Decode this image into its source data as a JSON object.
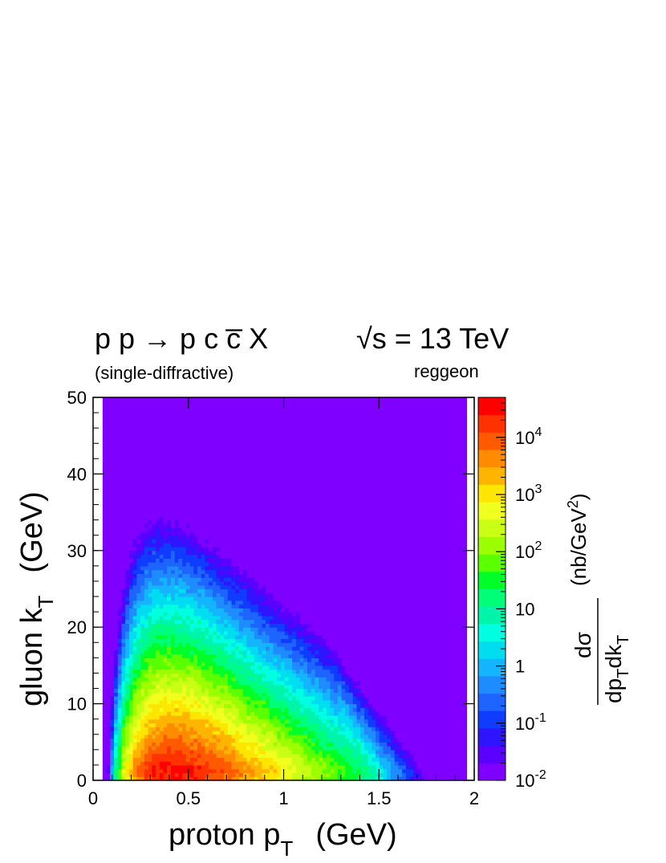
{
  "chart_data": {
    "type": "heatmap",
    "title": {
      "process": "p p → p c c̅ X",
      "process_sub": "(single-diffractive)",
      "energy": "√s = 13 TeV",
      "energy_sub": "reggeon"
    },
    "xlabel": "proton p",
    "xlabel_sub": "T",
    "xlabel_unit": "(GeV)",
    "ylabel": "gluon k",
    "ylabel_sub": "T",
    "ylabel_unit": "(GeV)",
    "xlim": [
      0,
      2
    ],
    "ylim": [
      0,
      50
    ],
    "x_ticks": [
      "0",
      "0.5",
      "1",
      "1.5",
      "2"
    ],
    "x_tick_values": [
      0,
      0.5,
      1,
      1.5,
      2
    ],
    "y_ticks": [
      "0",
      "10",
      "20",
      "30",
      "40",
      "50"
    ],
    "y_tick_values": [
      0,
      10,
      20,
      30,
      40,
      50
    ],
    "z_scale": "log",
    "zlim": [
      0.01,
      50000
    ],
    "colorbar": {
      "label_unit": "(nb/GeV",
      "label_unit_sup": "2",
      "label_unit_end": ")",
      "label_num": "dσ",
      "label_den": "dp",
      "label_den_sub": "T",
      "label_den_mid": "dk",
      "label_den_sub2": "T",
      "tick_values": [
        0.01,
        0.1,
        1,
        10,
        100,
        1000,
        10000
      ],
      "ticks": [
        {
          "base": "10",
          "exp": "-2"
        },
        {
          "base": "10",
          "exp": "-1"
        },
        {
          "base": "1",
          "exp": ""
        },
        {
          "base": "10",
          "exp": ""
        },
        {
          "base": "10",
          "exp": "2"
        },
        {
          "base": "10",
          "exp": "3"
        },
        {
          "base": "10",
          "exp": "4"
        }
      ],
      "colors": [
        "#7f00ff",
        "#5a00ff",
        "#2f14ff",
        "#0f3cff",
        "#1e64ff",
        "#1e8cff",
        "#14b4ff",
        "#00dcf0",
        "#00ffe1",
        "#00f5aa",
        "#00ff78",
        "#00ff28",
        "#5aff00",
        "#9bff00",
        "#c8ff14",
        "#f0ff1e",
        "#ffe600",
        "#ffb400",
        "#ff8c00",
        "#ff5a00",
        "#ff3200",
        "#ff0000"
      ]
    },
    "model": {
      "description": "log10 cross-section sampled on grid",
      "peak_log10": 4.55,
      "peak_x": 0.42,
      "peak_y": 1.2
    }
  }
}
